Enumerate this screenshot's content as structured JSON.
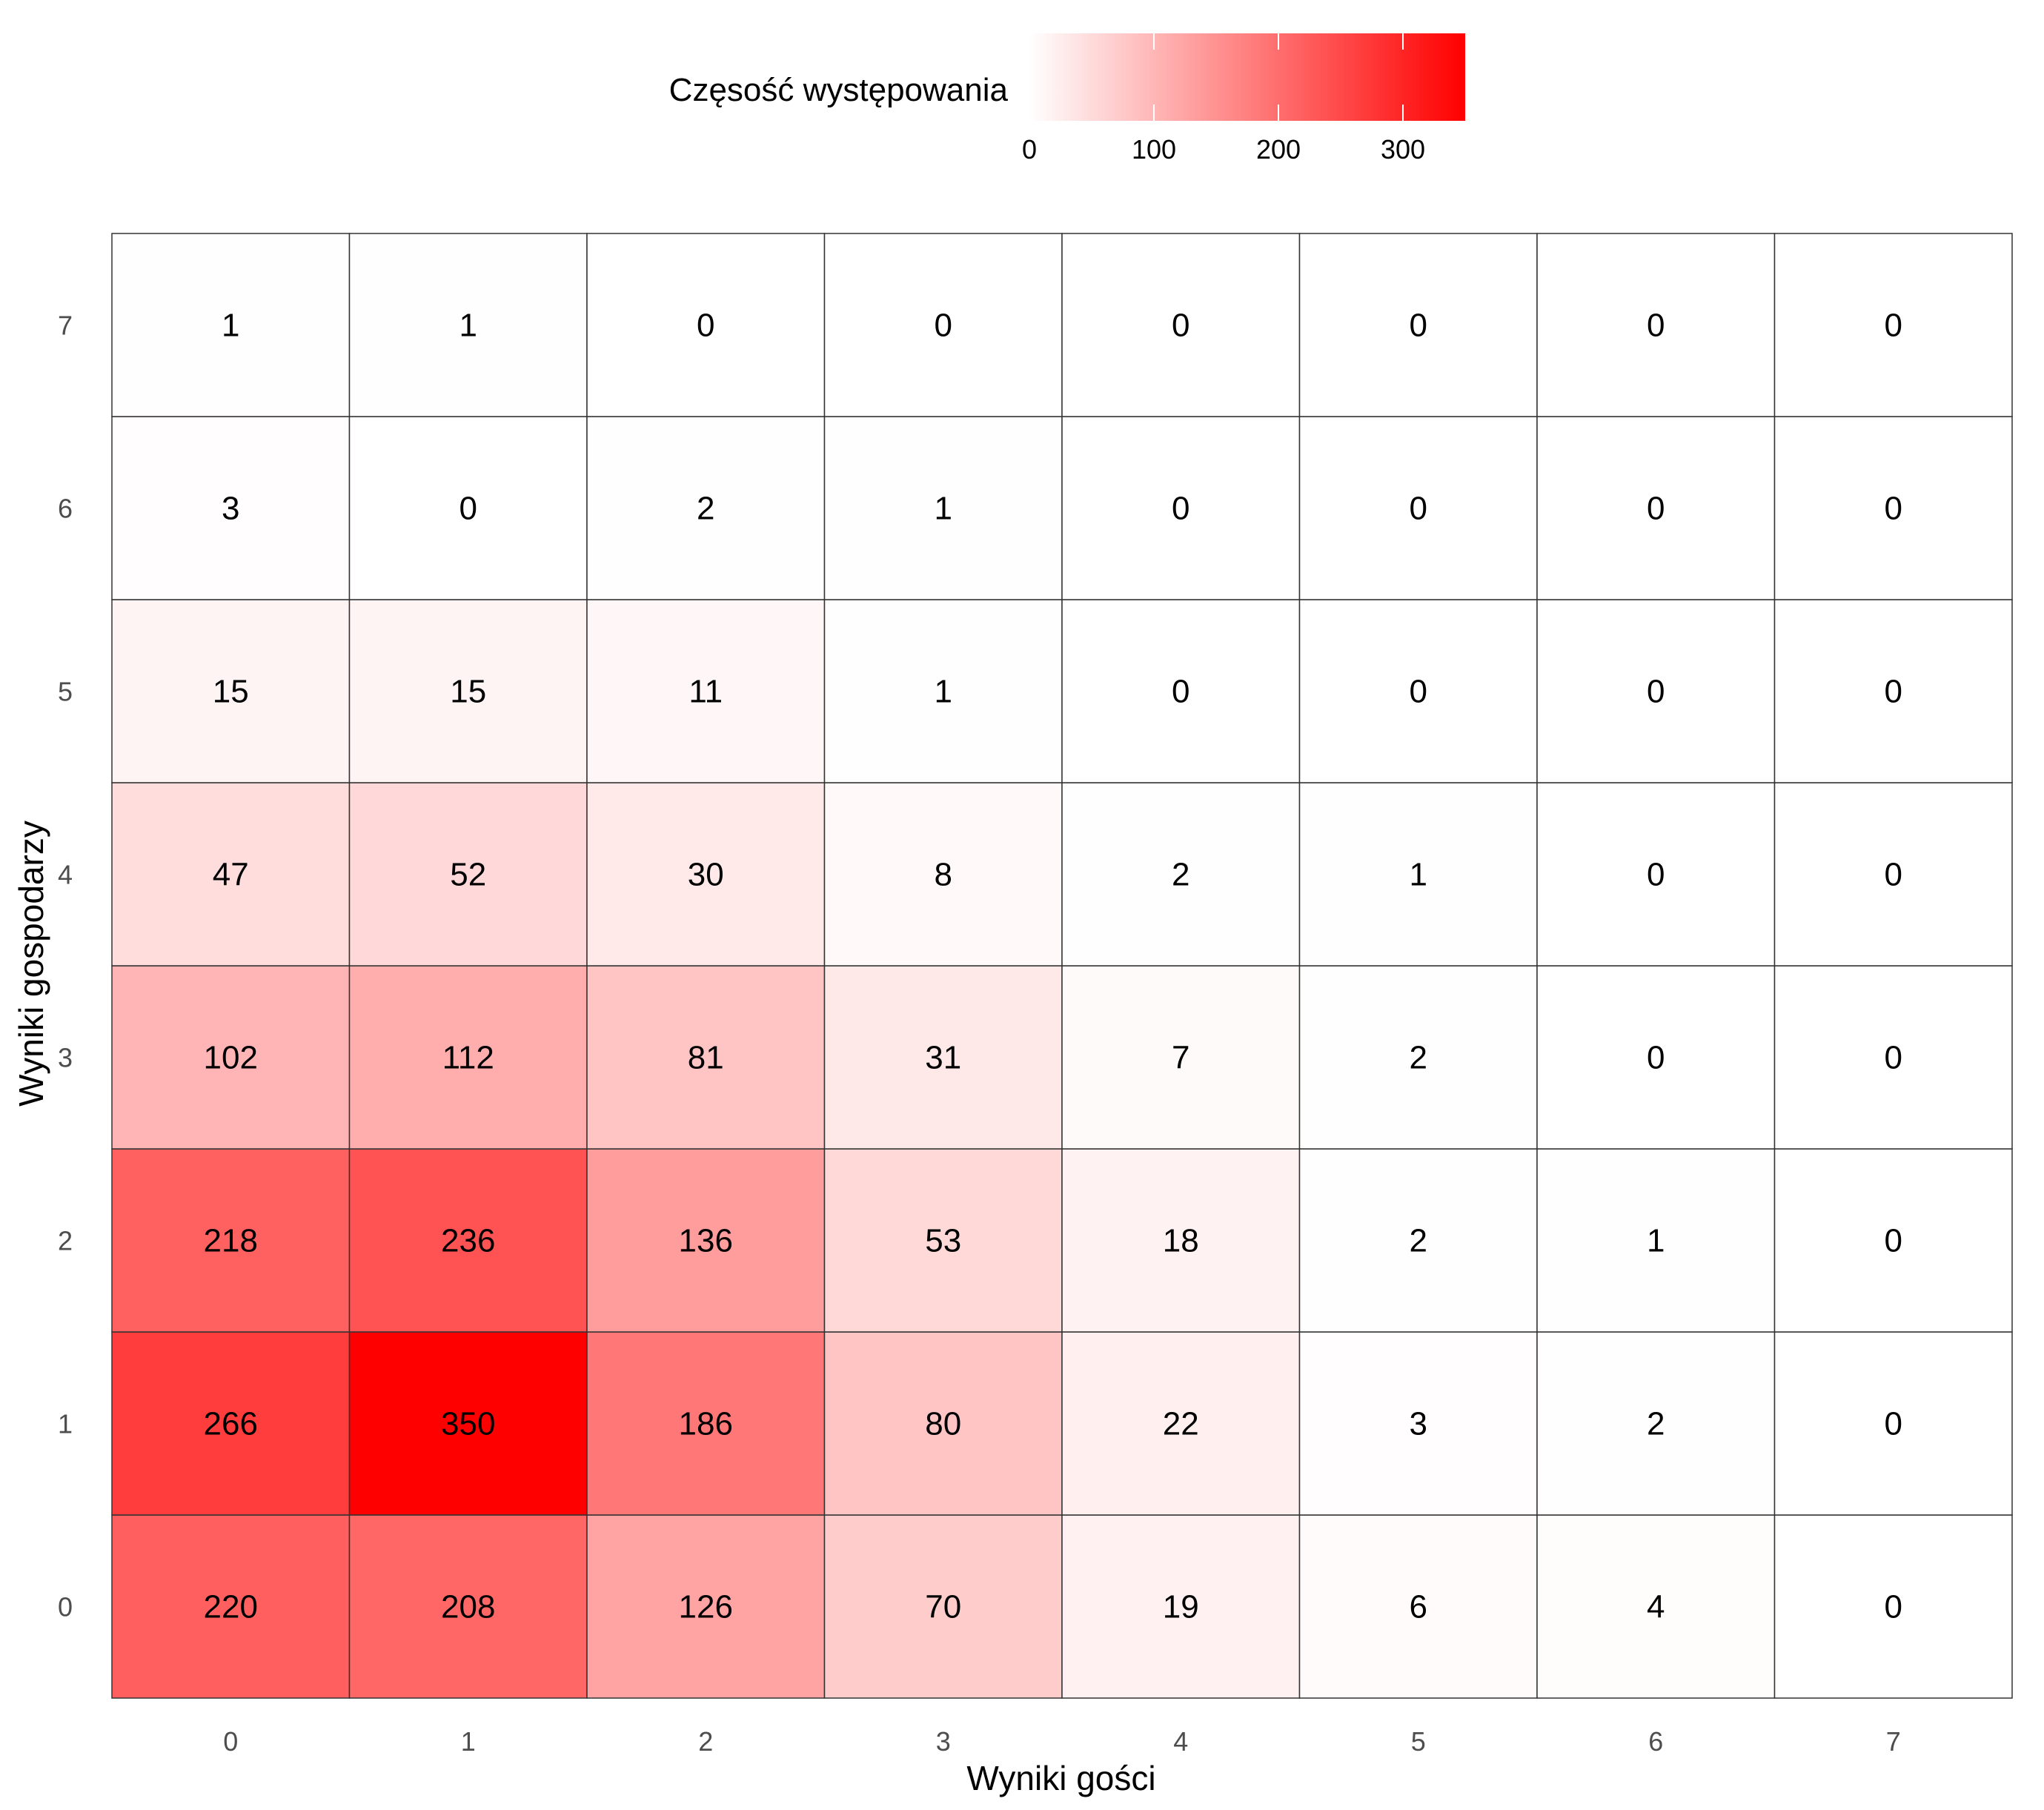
{
  "chart_data": {
    "type": "heatmap",
    "title": "",
    "xlabel": "Wyniki gości",
    "ylabel": "Wyniki gospodarzy",
    "x_categories": [
      "0",
      "1",
      "2",
      "3",
      "4",
      "5",
      "6",
      "7"
    ],
    "y_categories": [
      "0",
      "1",
      "2",
      "3",
      "4",
      "5",
      "6",
      "7"
    ],
    "values": [
      [
        220,
        208,
        126,
        70,
        19,
        6,
        4,
        0
      ],
      [
        266,
        350,
        186,
        80,
        22,
        3,
        2,
        0
      ],
      [
        218,
        236,
        136,
        53,
        18,
        2,
        1,
        0
      ],
      [
        102,
        112,
        81,
        31,
        7,
        2,
        0,
        0
      ],
      [
        47,
        52,
        30,
        8,
        2,
        1,
        0,
        0
      ],
      [
        15,
        15,
        11,
        1,
        0,
        0,
        0,
        0
      ],
      [
        3,
        0,
        2,
        1,
        0,
        0,
        0,
        0
      ],
      [
        1,
        1,
        0,
        0,
        0,
        0,
        0,
        0
      ]
    ],
    "legend": {
      "title": "Częsość występowania",
      "ticks": [
        0,
        100,
        200,
        300
      ],
      "range": [
        0,
        350
      ],
      "low_color": "#ffffff",
      "high_color": "#ff0000",
      "placement": "top"
    },
    "grid": false
  }
}
